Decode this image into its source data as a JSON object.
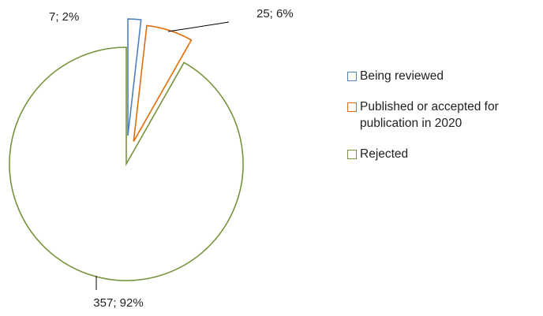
{
  "chart_data": {
    "type": "pie",
    "categories": [
      "Being reviewed",
      "Published or accepted for publication in 2020",
      "Rejected"
    ],
    "values": [
      7,
      25,
      357
    ],
    "value_labels": [
      "7; 2%",
      "25; 6%",
      "357; 92%"
    ],
    "colors": [
      "#4f81bd",
      "#e46c0a",
      "#77933c"
    ],
    "legend": "right"
  }
}
